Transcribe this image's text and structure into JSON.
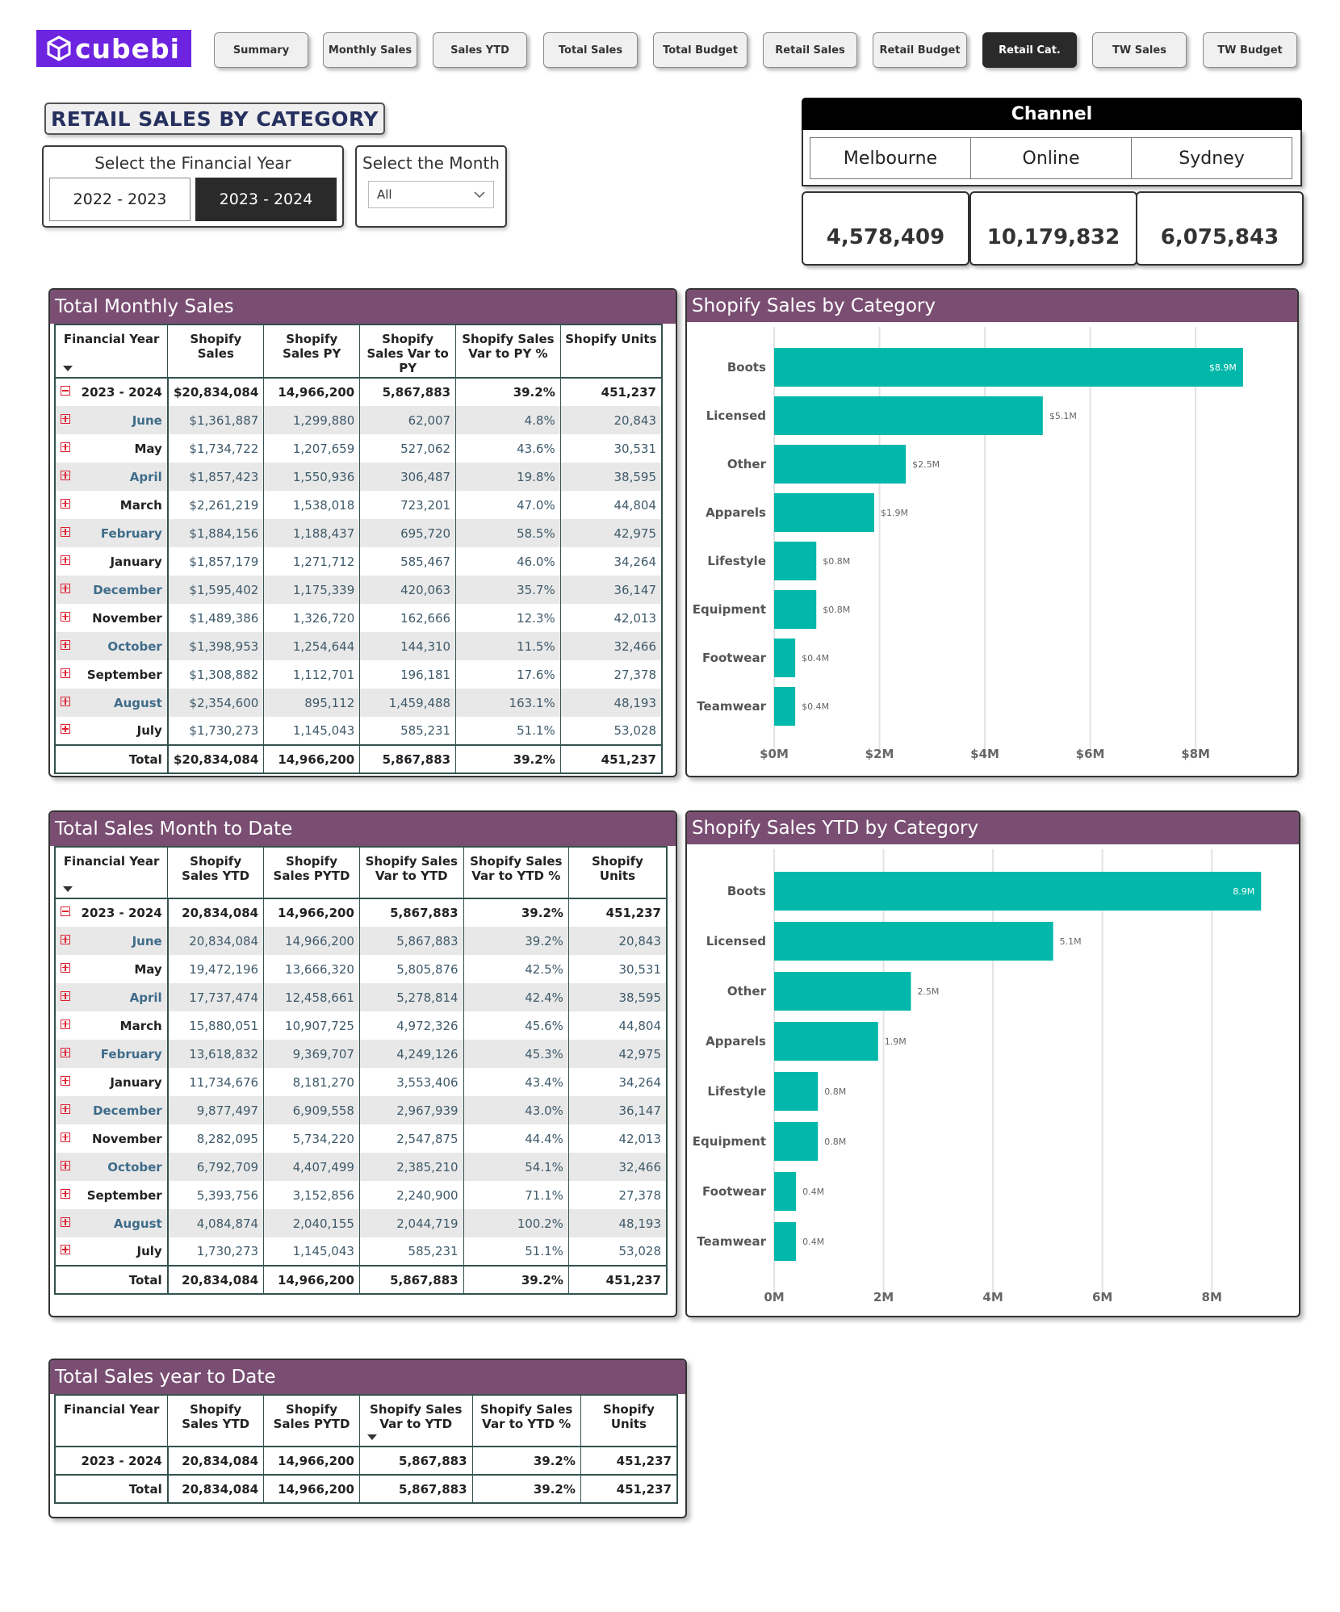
{
  "logo": {
    "text": "cubebi"
  },
  "nav": [
    {
      "label": "Summary",
      "active": false
    },
    {
      "label": "Monthly Sales",
      "active": false
    },
    {
      "label": "Sales YTD",
      "active": false
    },
    {
      "label": "Total Sales",
      "active": false
    },
    {
      "label": "Total Budget",
      "active": false
    },
    {
      "label": "Retail Sales",
      "active": false
    },
    {
      "label": "Retail Budget",
      "active": false
    },
    {
      "label": "Retail Cat.",
      "active": true
    },
    {
      "label": "TW Sales",
      "active": false
    },
    {
      "label": "TW Budget",
      "active": false
    }
  ],
  "page_title": "RETAIL SALES BY CATEGORY",
  "fy_slicer": {
    "title": "Select the Financial Year",
    "options": [
      "2022 - 2023",
      "2023 - 2024"
    ],
    "selected": "2023 - 2024"
  },
  "month_slicer": {
    "title": "Select the Month",
    "value": "All"
  },
  "channel": {
    "title": "Channel",
    "tabs": [
      "Melbourne",
      "Online",
      "Sydney"
    ],
    "values": [
      "4,578,409",
      "10,179,832",
      "6,075,843"
    ]
  },
  "monthly_table": {
    "title": "Total Monthly Sales",
    "columns": [
      "Financial Year",
      "Shopify Sales",
      "Shopify Sales PY",
      "Shopify Sales Var to PY",
      "Shopify Sales Var to PY %",
      "Shopify Units"
    ],
    "year_row": [
      "2023 - 2024",
      "$20,834,084",
      "14,966,200",
      "5,867,883",
      "39.2%",
      "451,237"
    ],
    "rows": [
      [
        "June",
        "$1,361,887",
        "1,299,880",
        "62,007",
        "4.8%",
        "20,843"
      ],
      [
        "May",
        "$1,734,722",
        "1,207,659",
        "527,062",
        "43.6%",
        "30,531"
      ],
      [
        "April",
        "$1,857,423",
        "1,550,936",
        "306,487",
        "19.8%",
        "38,595"
      ],
      [
        "March",
        "$2,261,219",
        "1,538,018",
        "723,201",
        "47.0%",
        "44,804"
      ],
      [
        "February",
        "$1,884,156",
        "1,188,437",
        "695,720",
        "58.5%",
        "42,975"
      ],
      [
        "January",
        "$1,857,179",
        "1,271,712",
        "585,467",
        "46.0%",
        "34,264"
      ],
      [
        "December",
        "$1,595,402",
        "1,175,339",
        "420,063",
        "35.7%",
        "36,147"
      ],
      [
        "November",
        "$1,489,386",
        "1,326,720",
        "162,666",
        "12.3%",
        "42,013"
      ],
      [
        "October",
        "$1,398,953",
        "1,254,644",
        "144,310",
        "11.5%",
        "32,466"
      ],
      [
        "September",
        "$1,308,882",
        "1,112,701",
        "196,181",
        "17.6%",
        "27,378"
      ],
      [
        "August",
        "$2,354,600",
        "895,112",
        "1,459,488",
        "163.1%",
        "48,193"
      ],
      [
        "July",
        "$1,730,273",
        "1,145,043",
        "585,231",
        "51.1%",
        "53,028"
      ]
    ],
    "total_row": [
      "Total",
      "$20,834,084",
      "14,966,200",
      "5,867,883",
      "39.2%",
      "451,237"
    ]
  },
  "mtd_table": {
    "title": "Total Sales Month to Date",
    "columns": [
      "Financial Year",
      "Shopify Sales YTD",
      "Shopify Sales PYTD",
      "Shopify Sales Var to YTD",
      "Shopify Sales Var to YTD %",
      "Shopify Units"
    ],
    "year_row": [
      "2023 - 2024",
      "20,834,084",
      "14,966,200",
      "5,867,883",
      "39.2%",
      "451,237"
    ],
    "rows": [
      [
        "June",
        "20,834,084",
        "14,966,200",
        "5,867,883",
        "39.2%",
        "20,843"
      ],
      [
        "May",
        "19,472,196",
        "13,666,320",
        "5,805,876",
        "42.5%",
        "30,531"
      ],
      [
        "April",
        "17,737,474",
        "12,458,661",
        "5,278,814",
        "42.4%",
        "38,595"
      ],
      [
        "March",
        "15,880,051",
        "10,907,725",
        "4,972,326",
        "45.6%",
        "44,804"
      ],
      [
        "February",
        "13,618,832",
        "9,369,707",
        "4,249,126",
        "45.3%",
        "42,975"
      ],
      [
        "January",
        "11,734,676",
        "8,181,270",
        "3,553,406",
        "43.4%",
        "34,264"
      ],
      [
        "December",
        "9,877,497",
        "6,909,558",
        "2,967,939",
        "43.0%",
        "36,147"
      ],
      [
        "November",
        "8,282,095",
        "5,734,220",
        "2,547,875",
        "44.4%",
        "42,013"
      ],
      [
        "October",
        "6,792,709",
        "4,407,499",
        "2,385,210",
        "54.1%",
        "32,466"
      ],
      [
        "September",
        "5,393,756",
        "3,152,856",
        "2,240,900",
        "71.1%",
        "27,378"
      ],
      [
        "August",
        "4,084,874",
        "2,040,155",
        "2,044,719",
        "100.2%",
        "48,193"
      ],
      [
        "July",
        "1,730,273",
        "1,145,043",
        "585,231",
        "51.1%",
        "53,028"
      ]
    ],
    "total_row": [
      "Total",
      "20,834,084",
      "14,966,200",
      "5,867,883",
      "39.2%",
      "451,237"
    ]
  },
  "ytd_table": {
    "title": "Total Sales year to Date",
    "columns": [
      "Financial Year",
      "Shopify Sales YTD",
      "Shopify Sales PYTD",
      "Shopify Sales Var to YTD",
      "Shopify Sales Var to YTD %",
      "Shopify Units"
    ],
    "year_row": [
      "2023 - 2024",
      "20,834,084",
      "14,966,200",
      "5,867,883",
      "39.2%",
      "451,237"
    ],
    "total_row": [
      "Total",
      "20,834,084",
      "14,966,200",
      "5,867,883",
      "39.2%",
      "451,237"
    ]
  },
  "chart_data": [
    {
      "type": "bar",
      "orientation": "horizontal",
      "title": "Shopify Sales by Category",
      "categories": [
        "Boots",
        "Licensed",
        "Other",
        "Apparels",
        "Lifestyle",
        "Equipment",
        "Footwear",
        "Teamwear"
      ],
      "values": [
        8.9,
        5.1,
        2.5,
        1.9,
        0.8,
        0.8,
        0.4,
        0.4
      ],
      "data_labels": [
        "$8.9M",
        "$5.1M",
        "$2.5M",
        "$1.9M",
        "$0.8M",
        "$0.8M",
        "$0.4M",
        "$0.4M"
      ],
      "x_ticks": [
        "$0M",
        "$2M",
        "$4M",
        "$6M",
        "$8M"
      ],
      "xlim": [
        0,
        9.5
      ],
      "color": "#01b8aa",
      "xlabel": "",
      "ylabel": ""
    },
    {
      "type": "bar",
      "orientation": "horizontal",
      "title": "Shopify Sales YTD by Category",
      "categories": [
        "Boots",
        "Licensed",
        "Other",
        "Apparels",
        "Lifestyle",
        "Equipment",
        "Footwear",
        "Teamwear"
      ],
      "values": [
        8.9,
        5.1,
        2.5,
        1.9,
        0.8,
        0.8,
        0.4,
        0.4
      ],
      "data_labels": [
        "8.9M",
        "5.1M",
        "2.5M",
        "1.9M",
        "0.8M",
        "0.8M",
        "0.4M",
        "0.4M"
      ],
      "x_ticks": [
        "0M",
        "2M",
        "4M",
        "6M",
        "8M"
      ],
      "xlim": [
        0,
        9.0
      ],
      "color": "#01b8aa",
      "xlabel": "",
      "ylabel": ""
    }
  ]
}
